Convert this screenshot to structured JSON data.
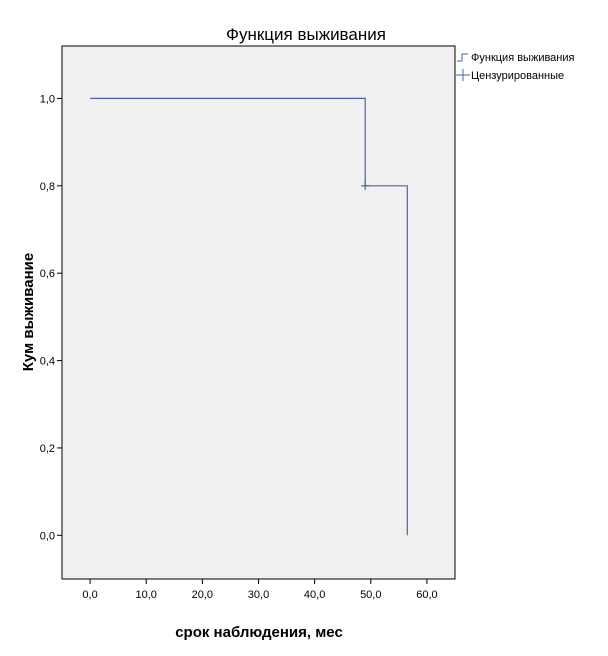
{
  "chart_data": {
    "type": "line",
    "subtype": "kaplan-meier-step",
    "title": "Функция выживания",
    "xlabel": "срок наблюдения, мес",
    "ylabel": "Кум выживание",
    "xlim": [
      -5,
      65
    ],
    "ylim": [
      -0.1,
      1.12
    ],
    "x_ticks": [
      {
        "value": 0,
        "label": "0,0"
      },
      {
        "value": 10,
        "label": "10,0"
      },
      {
        "value": 20,
        "label": "20,0"
      },
      {
        "value": 30,
        "label": "30,0"
      },
      {
        "value": 40,
        "label": "40,0"
      },
      {
        "value": 50,
        "label": "50,0"
      },
      {
        "value": 60,
        "label": "60,0"
      }
    ],
    "y_ticks": [
      {
        "value": 0.0,
        "label": "0,0"
      },
      {
        "value": 0.2,
        "label": "0,2"
      },
      {
        "value": 0.4,
        "label": "0,4"
      },
      {
        "value": 0.6,
        "label": "0,6"
      },
      {
        "value": 0.8,
        "label": "0,8"
      },
      {
        "value": 1.0,
        "label": "1,0"
      }
    ],
    "grid": false,
    "legend_position": "top-right, outside plot",
    "series": [
      {
        "name": "Функция выживания",
        "step_points": [
          [
            0,
            1.0
          ],
          [
            49,
            1.0
          ],
          [
            49,
            0.8
          ],
          [
            56.5,
            0.8
          ],
          [
            56.5,
            0.0
          ]
        ]
      }
    ],
    "censored": {
      "name": "Цензурированные",
      "points": [
        [
          49,
          0.8
        ]
      ]
    },
    "colors": {
      "line": "#4a63b3",
      "plot_background": "#f0f0f0",
      "frame": "#000000"
    }
  }
}
